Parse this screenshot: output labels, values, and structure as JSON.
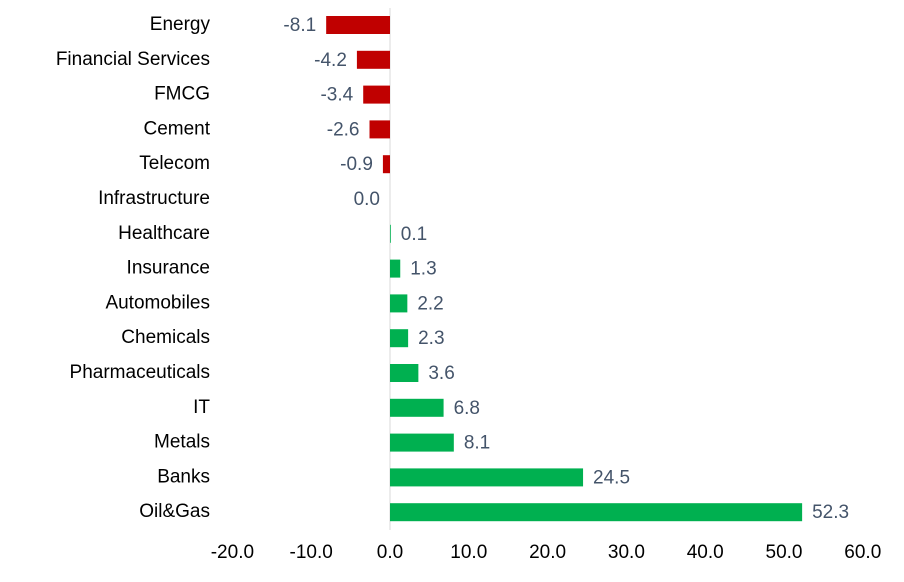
{
  "chart_data": {
    "type": "hbar",
    "categories": [
      "Energy",
      "Financial Services",
      "FMCG",
      "Cement",
      "Telecom",
      "Infrastructure",
      "Healthcare",
      "Insurance",
      "Automobiles",
      "Chemicals",
      "Pharmaceuticals",
      "IT",
      "Metals",
      "Banks",
      "Oil&Gas"
    ],
    "values": [
      -8.1,
      -4.2,
      -3.4,
      -2.6,
      -0.9,
      0.0,
      0.1,
      1.3,
      2.2,
      2.3,
      3.6,
      6.8,
      8.1,
      24.5,
      52.3
    ],
    "value_labels": [
      "-8.1",
      "-4.2",
      "-3.4",
      "-2.6",
      "-0.9",
      "0.0",
      "0.1",
      "1.3",
      "2.2",
      "2.3",
      "3.6",
      "6.8",
      "8.1",
      "24.5",
      "52.3"
    ],
    "negative_color": "#c00000",
    "positive_color": "#00b050",
    "xlim": [
      -20,
      60
    ],
    "xticks": [
      {
        "value": -20,
        "label": "-20.0"
      },
      {
        "value": -10,
        "label": "-10.0"
      },
      {
        "value": 0,
        "label": "0.0"
      },
      {
        "value": 10,
        "label": "10.0"
      },
      {
        "value": 20,
        "label": "20.0"
      },
      {
        "value": 30,
        "label": "30.0"
      },
      {
        "value": 40,
        "label": "40.0"
      },
      {
        "value": 50,
        "label": "50.0"
      },
      {
        "value": 60,
        "label": "60.0"
      }
    ]
  }
}
